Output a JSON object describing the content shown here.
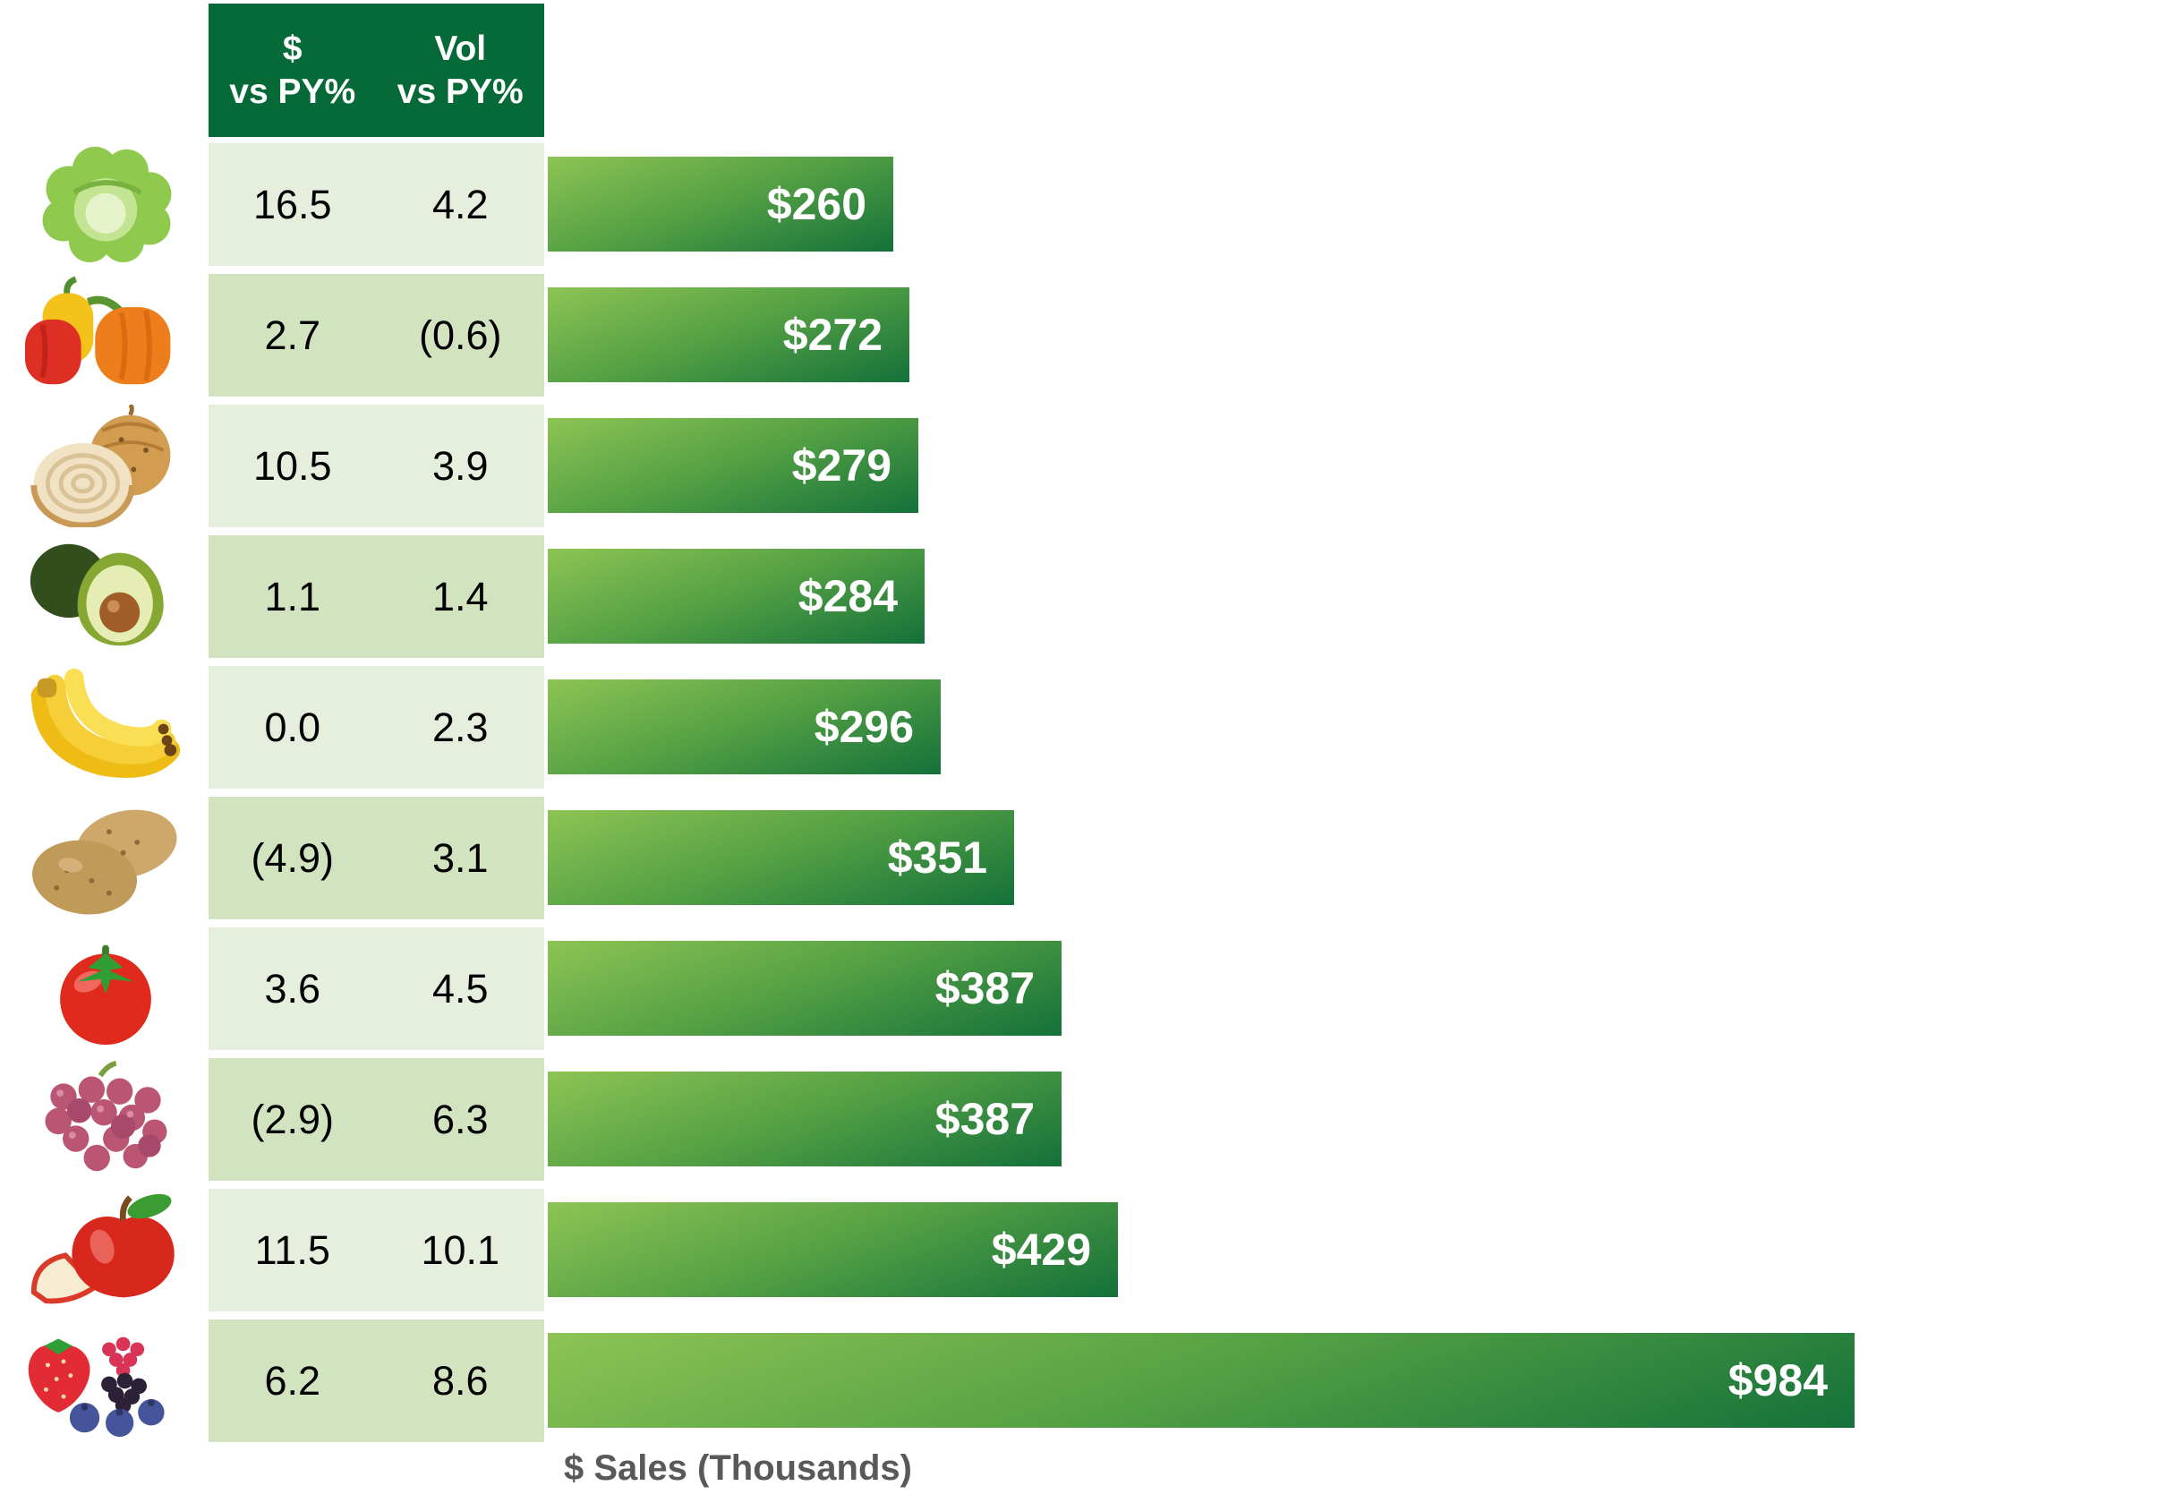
{
  "header": {
    "col1_line1": "$",
    "col1_line2": "vs PY%",
    "col2_line1": "Vol",
    "col2_line2": "vs PY%"
  },
  "axis": {
    "label": "$ Sales (Thousands)"
  },
  "colors": {
    "header_bg": "#066a38",
    "row_light": "#e6efde",
    "row_dark": "#d2e4bf",
    "bar_gradient_light": "#8dc454",
    "bar_gradient_mid": "#55a144",
    "bar_gradient_dark": "#14713a",
    "bar_label_color": "#ffffff",
    "cell_text_color": "#000000",
    "axis_label_color": "#58595b"
  },
  "rows": [
    {
      "icon": "lettuce-icon",
      "category": "lettuce",
      "dollar_vs_py": "16.5",
      "vol_vs_py": "4.2",
      "sales_label": "$260",
      "sales_value": 260
    },
    {
      "icon": "bell-peppers-icon",
      "category": "bell peppers",
      "dollar_vs_py": "2.7",
      "vol_vs_py": "(0.6)",
      "sales_label": "$272",
      "sales_value": 272
    },
    {
      "icon": "onions-icon",
      "category": "onions",
      "dollar_vs_py": "10.5",
      "vol_vs_py": "3.9",
      "sales_label": "$279",
      "sales_value": 279
    },
    {
      "icon": "avocados-icon",
      "category": "avocados",
      "dollar_vs_py": "1.1",
      "vol_vs_py": "1.4",
      "sales_label": "$284",
      "sales_value": 284
    },
    {
      "icon": "bananas-icon",
      "category": "bananas",
      "dollar_vs_py": "0.0",
      "vol_vs_py": "2.3",
      "sales_label": "$296",
      "sales_value": 296
    },
    {
      "icon": "potatoes-icon",
      "category": "potatoes",
      "dollar_vs_py": "(4.9)",
      "vol_vs_py": "3.1",
      "sales_label": "$351",
      "sales_value": 351
    },
    {
      "icon": "tomatoes-icon",
      "category": "tomatoes",
      "dollar_vs_py": "3.6",
      "vol_vs_py": "4.5",
      "sales_label": "$387",
      "sales_value": 387
    },
    {
      "icon": "grapes-icon",
      "category": "grapes",
      "dollar_vs_py": "(2.9)",
      "vol_vs_py": "6.3",
      "sales_label": "$387",
      "sales_value": 387
    },
    {
      "icon": "apples-icon",
      "category": "apples",
      "dollar_vs_py": "11.5",
      "vol_vs_py": "10.1",
      "sales_label": "$429",
      "sales_value": 429
    },
    {
      "icon": "berries-icon",
      "category": "berries",
      "dollar_vs_py": "6.2",
      "vol_vs_py": "8.6",
      "sales_label": "$984",
      "sales_value": 984
    }
  ],
  "chart_data": {
    "type": "bar",
    "orientation": "horizontal",
    "title": "",
    "xlabel": "$ Sales (Thousands)",
    "ylabel": "",
    "xlim": [
      0,
      984
    ],
    "grid": false,
    "legend_position": "none",
    "categories": [
      "lettuce",
      "bell peppers",
      "onions",
      "avocados",
      "bananas",
      "potatoes",
      "tomatoes",
      "grapes",
      "apples",
      "berries"
    ],
    "series": [
      {
        "name": "$ Sales (Thousands)",
        "values": [
          260,
          272,
          279,
          284,
          296,
          351,
          387,
          387,
          429,
          984
        ]
      },
      {
        "name": "$ vs PY%",
        "values": [
          16.5,
          2.7,
          10.5,
          1.1,
          0.0,
          -4.9,
          3.6,
          -2.9,
          11.5,
          6.2
        ]
      },
      {
        "name": "Vol vs PY%",
        "values": [
          4.2,
          -0.6,
          3.9,
          1.4,
          2.3,
          3.1,
          4.5,
          6.3,
          10.1,
          8.6
        ]
      }
    ],
    "bar_labels": [
      "$260",
      "$272",
      "$279",
      "$284",
      "$296",
      "$351",
      "$387",
      "$387",
      "$429",
      "$984"
    ],
    "notes": "negative percentages displayed in parentheses"
  }
}
